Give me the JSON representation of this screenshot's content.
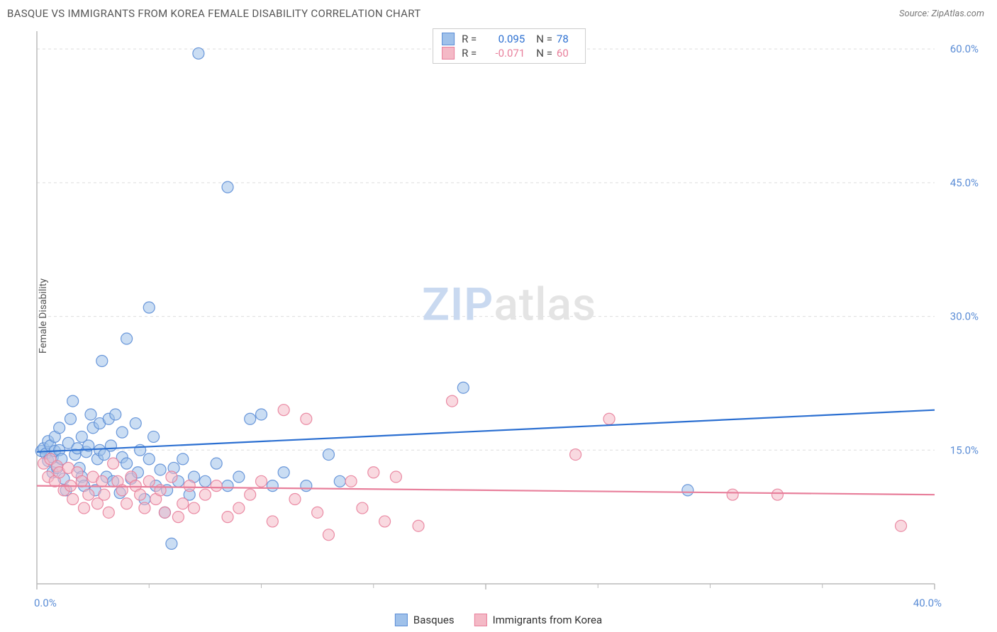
{
  "title": "BASQUE VS IMMIGRANTS FROM KOREA FEMALE DISABILITY CORRELATION CHART",
  "source_label": "Source: ",
  "source_value": "ZipAtlas.com",
  "ylabel": "Female Disability",
  "watermark_a": "ZIP",
  "watermark_b": "atlas",
  "watermark_color_a": "#c9d9f0",
  "watermark_color_b": "#e4e4e4",
  "chart": {
    "type": "scatter",
    "xlim": [
      0,
      40
    ],
    "ylim": [
      0,
      62
    ],
    "x_ticks": [
      0,
      20,
      40
    ],
    "x_tick_labels": [
      "0.0%",
      "",
      "40.0%"
    ],
    "x_minor_ticks": [
      5,
      10,
      15,
      25,
      30,
      35
    ],
    "y_ticks": [
      15,
      30,
      45,
      60
    ],
    "y_tick_labels": [
      "15.0%",
      "30.0%",
      "45.0%",
      "60.0%"
    ],
    "y_tick_color": "#5b8dd6",
    "x_tick_color": "#5b8dd6",
    "background_color": "#ffffff",
    "grid_color": "#dddddd",
    "axis_color": "#bbbbbb",
    "marker_radius": 8,
    "marker_opacity": 0.55,
    "line_width": 2.2,
    "series": [
      {
        "name": "Basques",
        "color_fill": "#9fc1ea",
        "color_stroke": "#5b8dd6",
        "line_color": "#2b6fd1",
        "r_value": "0.095",
        "n_value": "78",
        "trend_y_start": 14.8,
        "trend_y_end": 19.5,
        "points": [
          [
            0.2,
            14.9
          ],
          [
            0.3,
            15.2
          ],
          [
            0.4,
            14.6
          ],
          [
            0.5,
            16.0
          ],
          [
            0.5,
            13.8
          ],
          [
            0.6,
            15.5
          ],
          [
            0.7,
            14.2
          ],
          [
            0.7,
            12.5
          ],
          [
            0.8,
            16.5
          ],
          [
            0.8,
            14.9
          ],
          [
            0.9,
            13.0
          ],
          [
            1.0,
            15.0
          ],
          [
            1.0,
            17.5
          ],
          [
            1.1,
            14.0
          ],
          [
            1.2,
            11.8
          ],
          [
            1.3,
            10.5
          ],
          [
            1.4,
            15.8
          ],
          [
            1.5,
            18.5
          ],
          [
            1.6,
            20.5
          ],
          [
            1.7,
            14.5
          ],
          [
            1.8,
            15.2
          ],
          [
            1.9,
            13.0
          ],
          [
            2.0,
            12.0
          ],
          [
            2.0,
            16.5
          ],
          [
            2.1,
            11.0
          ],
          [
            2.2,
            14.8
          ],
          [
            2.3,
            15.5
          ],
          [
            2.4,
            19.0
          ],
          [
            2.5,
            17.5
          ],
          [
            2.6,
            10.5
          ],
          [
            2.7,
            14.0
          ],
          [
            2.8,
            15.0
          ],
          [
            2.8,
            18.0
          ],
          [
            2.9,
            25.0
          ],
          [
            3.0,
            14.5
          ],
          [
            3.1,
            12.0
          ],
          [
            3.2,
            18.5
          ],
          [
            3.3,
            15.5
          ],
          [
            3.4,
            11.5
          ],
          [
            3.5,
            19.0
          ],
          [
            3.7,
            10.2
          ],
          [
            3.8,
            14.2
          ],
          [
            3.8,
            17.0
          ],
          [
            4.0,
            27.5
          ],
          [
            4.0,
            13.5
          ],
          [
            4.2,
            11.8
          ],
          [
            4.4,
            18.0
          ],
          [
            4.5,
            12.5
          ],
          [
            4.6,
            15.0
          ],
          [
            4.8,
            9.5
          ],
          [
            5.0,
            31.0
          ],
          [
            5.0,
            14.0
          ],
          [
            5.2,
            16.5
          ],
          [
            5.3,
            11.0
          ],
          [
            5.5,
            12.8
          ],
          [
            5.7,
            8.0
          ],
          [
            5.8,
            10.5
          ],
          [
            6.0,
            4.5
          ],
          [
            6.1,
            13.0
          ],
          [
            6.3,
            11.5
          ],
          [
            6.5,
            14.0
          ],
          [
            6.8,
            10.0
          ],
          [
            7.0,
            12.0
          ],
          [
            7.2,
            59.5
          ],
          [
            7.5,
            11.5
          ],
          [
            8.0,
            13.5
          ],
          [
            8.5,
            44.5
          ],
          [
            8.5,
            11.0
          ],
          [
            9.0,
            12.0
          ],
          [
            9.5,
            18.5
          ],
          [
            10.0,
            19.0
          ],
          [
            10.5,
            11.0
          ],
          [
            11.0,
            12.5
          ],
          [
            12.0,
            11.0
          ],
          [
            13.0,
            14.5
          ],
          [
            13.5,
            11.5
          ],
          [
            19.0,
            22.0
          ],
          [
            29.0,
            10.5
          ]
        ]
      },
      {
        "name": "Immigrants from Korea",
        "color_fill": "#f4b9c6",
        "color_stroke": "#e87f9b",
        "line_color": "#e87f9b",
        "r_value": "-0.071",
        "n_value": "60",
        "trend_y_start": 11.0,
        "trend_y_end": 10.0,
        "points": [
          [
            0.3,
            13.5
          ],
          [
            0.5,
            12.0
          ],
          [
            0.6,
            14.0
          ],
          [
            0.8,
            11.5
          ],
          [
            0.9,
            13.2
          ],
          [
            1.0,
            12.5
          ],
          [
            1.2,
            10.5
          ],
          [
            1.4,
            13.0
          ],
          [
            1.5,
            11.0
          ],
          [
            1.6,
            9.5
          ],
          [
            1.8,
            12.5
          ],
          [
            2.0,
            11.5
          ],
          [
            2.1,
            8.5
          ],
          [
            2.3,
            10.0
          ],
          [
            2.5,
            12.0
          ],
          [
            2.7,
            9.0
          ],
          [
            2.9,
            11.5
          ],
          [
            3.0,
            10.0
          ],
          [
            3.2,
            8.0
          ],
          [
            3.4,
            13.5
          ],
          [
            3.6,
            11.5
          ],
          [
            3.8,
            10.5
          ],
          [
            4.0,
            9.0
          ],
          [
            4.2,
            12.0
          ],
          [
            4.4,
            11.0
          ],
          [
            4.6,
            10.0
          ],
          [
            4.8,
            8.5
          ],
          [
            5.0,
            11.5
          ],
          [
            5.3,
            9.5
          ],
          [
            5.5,
            10.5
          ],
          [
            5.7,
            8.0
          ],
          [
            6.0,
            12.0
          ],
          [
            6.3,
            7.5
          ],
          [
            6.5,
            9.0
          ],
          [
            6.8,
            11.0
          ],
          [
            7.0,
            8.5
          ],
          [
            7.5,
            10.0
          ],
          [
            8.0,
            11.0
          ],
          [
            8.5,
            7.5
          ],
          [
            9.0,
            8.5
          ],
          [
            9.5,
            10.0
          ],
          [
            10.0,
            11.5
          ],
          [
            10.5,
            7.0
          ],
          [
            11.0,
            19.5
          ],
          [
            11.5,
            9.5
          ],
          [
            12.0,
            18.5
          ],
          [
            12.5,
            8.0
          ],
          [
            13.0,
            5.5
          ],
          [
            14.0,
            11.5
          ],
          [
            14.5,
            8.5
          ],
          [
            15.0,
            12.5
          ],
          [
            15.5,
            7.0
          ],
          [
            16.0,
            12.0
          ],
          [
            17.0,
            6.5
          ],
          [
            18.5,
            20.5
          ],
          [
            24.0,
            14.5
          ],
          [
            25.5,
            18.5
          ],
          [
            31.0,
            10.0
          ],
          [
            33.0,
            10.0
          ],
          [
            38.5,
            6.5
          ]
        ]
      }
    ]
  },
  "legend_top": {
    "r_label": "R =",
    "n_label": "N ="
  },
  "legend_bottom_labels": [
    "Basques",
    "Immigrants from Korea"
  ]
}
